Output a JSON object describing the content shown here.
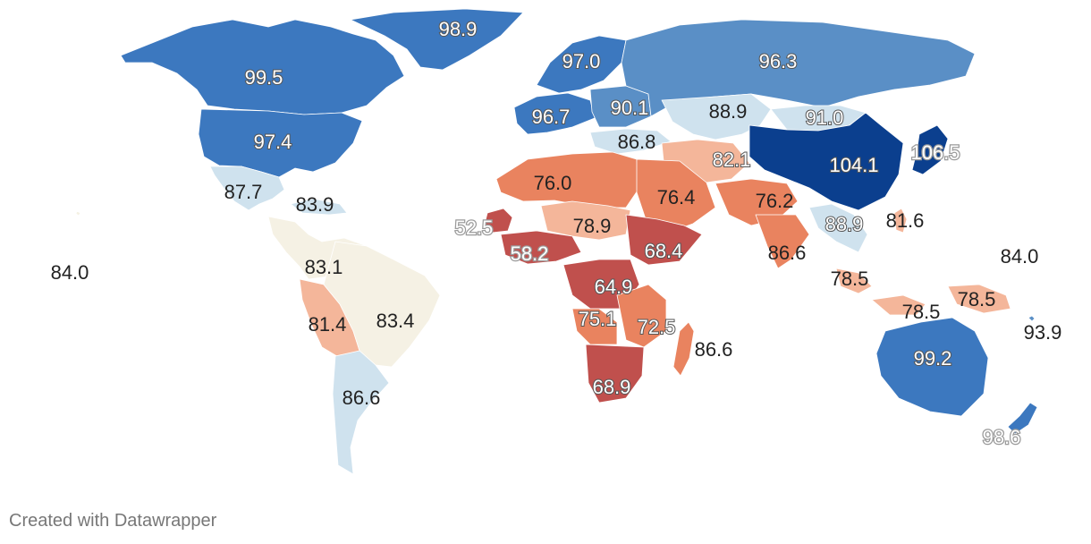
{
  "colors": {
    "deep_red": "#a50026",
    "red": "#c0504d",
    "orange": "#e9835f",
    "light_orange": "#f4b69a",
    "cream": "#f5f1e4",
    "light_blue": "#cfe2ee",
    "mid_blue": "#5a8fc6",
    "blue": "#3c78bf",
    "dark_blue": "#0b3f8e"
  },
  "regions": [
    {
      "name": "Hawaii",
      "value": "84.0",
      "fill": "cream"
    },
    {
      "name": "Alaska/Canada",
      "value": "99.5",
      "fill": "blue"
    },
    {
      "name": "Greenland",
      "value": "98.9",
      "fill": "blue"
    },
    {
      "name": "United States",
      "value": "97.4",
      "fill": "blue"
    },
    {
      "name": "Mexico",
      "value": "87.7",
      "fill": "light_blue"
    },
    {
      "name": "Caribbean",
      "value": "83.9",
      "fill": "light_blue"
    },
    {
      "name": "Central America / Colombia",
      "value": "83.1",
      "fill": "cream"
    },
    {
      "name": "Peru / Bolivia",
      "value": "81.4",
      "fill": "light_orange"
    },
    {
      "name": "Brazil",
      "value": "83.4",
      "fill": "cream"
    },
    {
      "name": "Argentina",
      "value": "86.6",
      "fill": "light_blue"
    },
    {
      "name": "Scandinavia",
      "value": "97.0",
      "fill": "blue"
    },
    {
      "name": "Western Europe",
      "value": "96.7",
      "fill": "blue"
    },
    {
      "name": "Eastern Europe",
      "value": "90.1",
      "fill": "mid_blue"
    },
    {
      "name": "Russia",
      "value": "96.3",
      "fill": "mid_blue"
    },
    {
      "name": "Kazakhstan",
      "value": "88.9",
      "fill": "light_blue"
    },
    {
      "name": "Mongolia",
      "value": "91.0",
      "fill": "light_blue"
    },
    {
      "name": "Turkey",
      "value": "86.8",
      "fill": "light_blue"
    },
    {
      "name": "Iran",
      "value": "82.1",
      "fill": "light_orange"
    },
    {
      "name": "China",
      "value": "104.1",
      "fill": "dark_blue"
    },
    {
      "name": "Japan",
      "value": "106.5",
      "fill": "dark_blue"
    },
    {
      "name": "North Africa",
      "value": "76.0",
      "fill": "orange"
    },
    {
      "name": "Arabia",
      "value": "76.4",
      "fill": "orange"
    },
    {
      "name": "South Asia",
      "value": "76.2",
      "fill": "orange"
    },
    {
      "name": "Sahel",
      "value": "78.9",
      "fill": "light_orange"
    },
    {
      "name": "Senegal",
      "value": "52.5",
      "fill": "red"
    },
    {
      "name": "West Africa",
      "value": "58.2",
      "fill": "red"
    },
    {
      "name": "Horn of Africa",
      "value": "68.4",
      "fill": "red"
    },
    {
      "name": "Central Africa",
      "value": "64.9",
      "fill": "red"
    },
    {
      "name": "Angola",
      "value": "75.1",
      "fill": "orange"
    },
    {
      "name": "East Africa",
      "value": "72.5",
      "fill": "orange"
    },
    {
      "name": "South Africa",
      "value": "68.9",
      "fill": "red"
    },
    {
      "name": "Madagascar",
      "value": "86.6",
      "fill": "orange"
    },
    {
      "name": "India",
      "value": "86.6",
      "fill": "orange"
    },
    {
      "name": "Southeast Asia",
      "value": "88.9",
      "fill": "light_blue"
    },
    {
      "name": "Philippines",
      "value": "81.6",
      "fill": "light_orange"
    },
    {
      "name": "Micronesia",
      "value": "84.0",
      "fill": "light_orange"
    },
    {
      "name": "Indonesia West",
      "value": "78.5",
      "fill": "light_orange"
    },
    {
      "name": "Indonesia East",
      "value": "78.5",
      "fill": "light_orange"
    },
    {
      "name": "Papua New Guinea",
      "value": "78.5",
      "fill": "light_orange"
    },
    {
      "name": "Pacific Islands",
      "value": "93.9",
      "fill": "mid_blue"
    },
    {
      "name": "Australia",
      "value": "99.2",
      "fill": "blue"
    },
    {
      "name": "New Zealand",
      "value": "98.6",
      "fill": "blue"
    }
  ],
  "footer": {
    "credit": "Created with Datawrapper"
  }
}
